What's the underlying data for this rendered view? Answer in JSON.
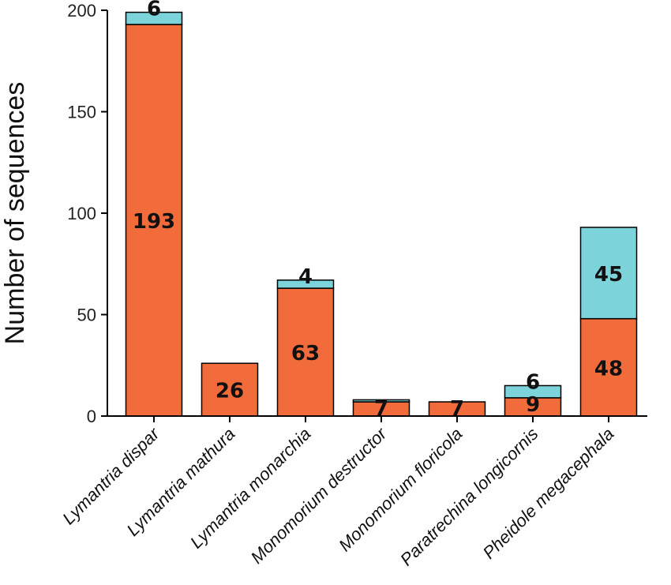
{
  "chart_data": {
    "type": "bar",
    "stacked": true,
    "title": "",
    "xlabel": "",
    "ylabel": "Number of sequences",
    "ylim": [
      0,
      200
    ],
    "yticks": [
      0,
      50,
      100,
      150,
      200
    ],
    "grid": false,
    "categories": [
      "Lymantria dispar",
      "Lymantria mathura",
      "Lymantria monarchia",
      "Monomorium destructor",
      "Monomorium floricola",
      "Paratrechina longicornis",
      "Pheidole megacephala"
    ],
    "series": [
      {
        "values": [
          193,
          26,
          63,
          7,
          7,
          9,
          48
        ],
        "color": "#F26B3A"
      },
      {
        "values": [
          6,
          0,
          4,
          1,
          0,
          6,
          45
        ],
        "color": "#7DD3DA"
      }
    ],
    "data_labels": [
      [
        "193",
        "26",
        "63",
        "7",
        "7",
        "9",
        "48"
      ],
      [
        "6",
        "",
        "4",
        "",
        "",
        "6",
        "45"
      ]
    ]
  }
}
